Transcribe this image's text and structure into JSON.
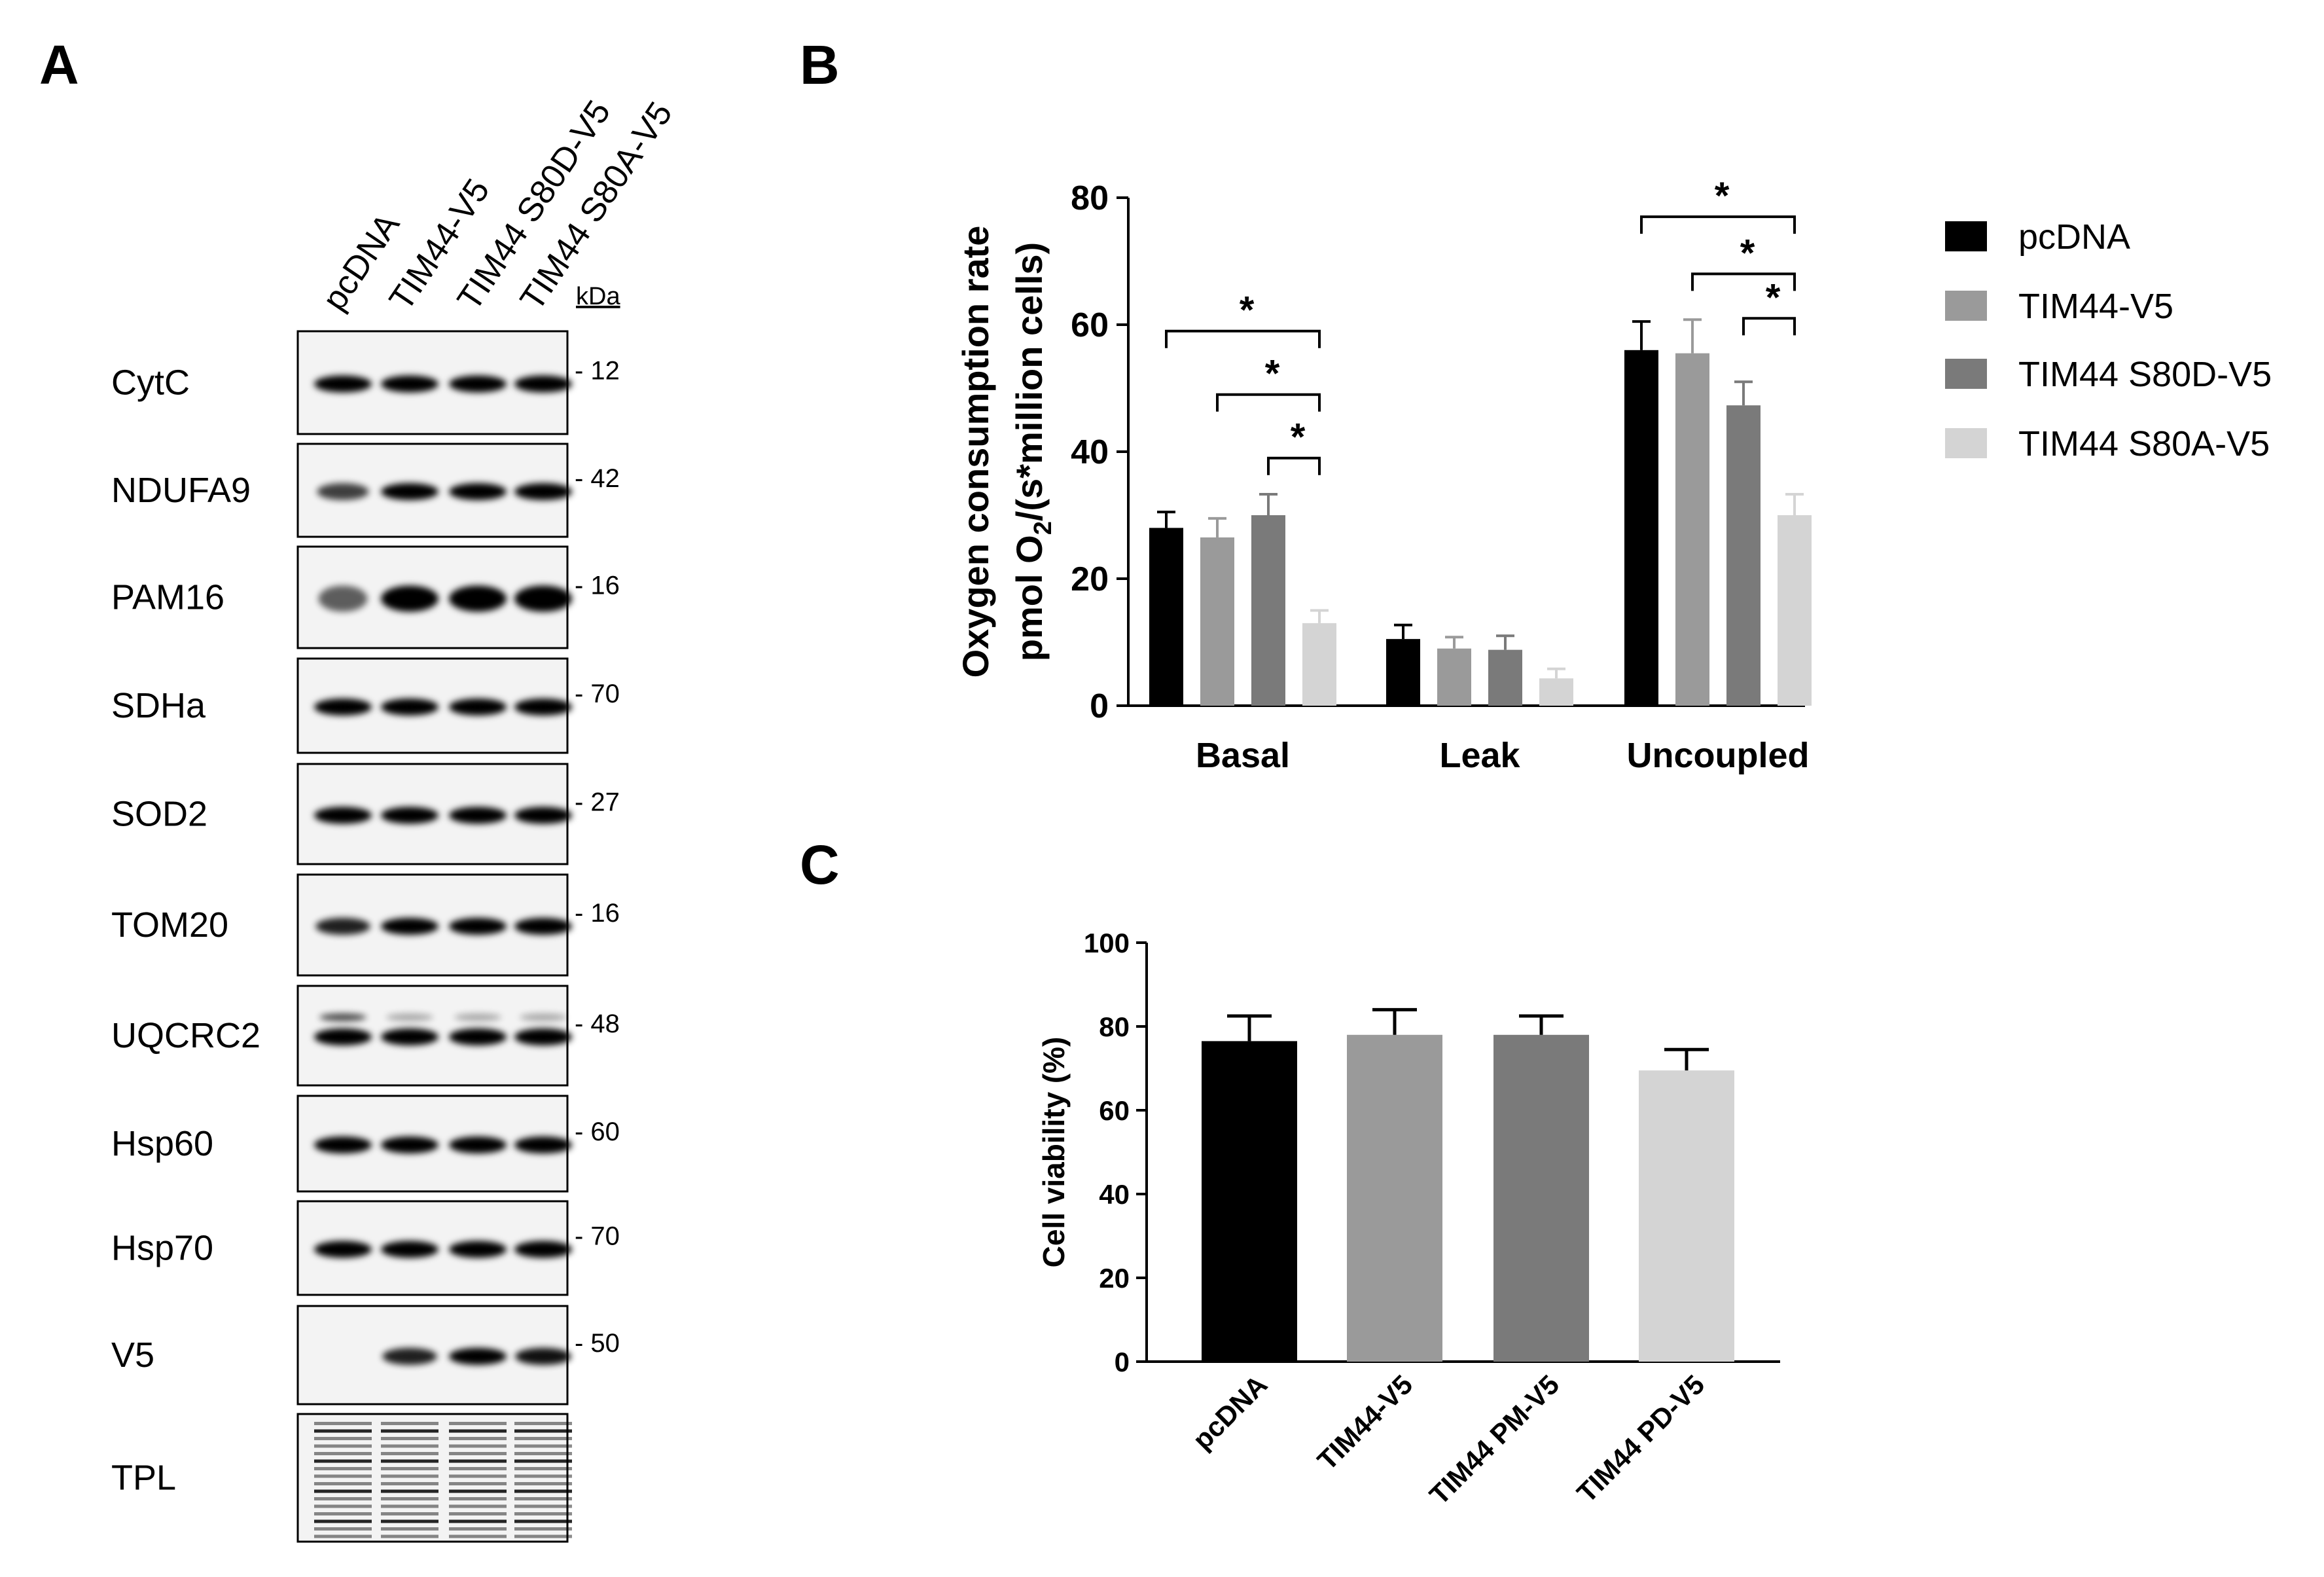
{
  "panels": {
    "a": "A",
    "b": "B",
    "c": "C"
  },
  "panel_a": {
    "lanes": [
      "pcDNA",
      "TIM44-V5",
      "TIM44 S80D-V5",
      "TIM44 S80A-V5"
    ],
    "kda_header": "kDa",
    "blots": [
      {
        "protein": "CytC",
        "kda": "- 12",
        "intensities": [
          1,
          1,
          1,
          1
        ]
      },
      {
        "protein": "NDUFA9",
        "kda": "- 42",
        "intensities": [
          0.6,
          1,
          1,
          1
        ]
      },
      {
        "protein": "PAM16",
        "kda": "- 16",
        "intensities": [
          0.4,
          1,
          1,
          1
        ]
      },
      {
        "protein": "SDHa",
        "kda": "- 70",
        "intensities": [
          1,
          1,
          1,
          1
        ]
      },
      {
        "protein": "SOD2",
        "kda": "- 27",
        "intensities": [
          1,
          1,
          1,
          1
        ]
      },
      {
        "protein": "TOM20",
        "kda": "- 16",
        "intensities": [
          0.8,
          1,
          1,
          1
        ]
      },
      {
        "protein": "UQCRC2",
        "kda": "- 48",
        "intensities": [
          1,
          1,
          1,
          1
        ]
      },
      {
        "protein": "Hsp60",
        "kda": "- 60",
        "intensities": [
          1,
          1,
          1,
          1
        ]
      },
      {
        "protein": "Hsp70",
        "kda": "- 70",
        "intensities": [
          1,
          1,
          1,
          1
        ]
      },
      {
        "protein": "V5",
        "kda": "- 50",
        "intensities": [
          0,
          0.8,
          1,
          0.9
        ]
      },
      {
        "protein": "TPL",
        "kda": "",
        "intensities": [
          1,
          1,
          1,
          1
        ]
      }
    ]
  },
  "chart_data": [
    {
      "type": "bar",
      "panel": "B",
      "ylabel_line1": "Oxygen consumption rate",
      "ylabel_line2_pre": "pmol O",
      "ylabel_line2_sub": "2",
      "ylabel_line2_post": "/(s*million cells)",
      "ylim": [
        0,
        80
      ],
      "yticks": [
        "0",
        "20",
        "40",
        "60",
        "80"
      ],
      "categories": [
        "Basal",
        "Leak",
        "Uncoupled"
      ],
      "series": [
        {
          "name": "pcDNA",
          "color": "#000000",
          "values": [
            28,
            10.5,
            56
          ],
          "errors": [
            2.5,
            2.2,
            4.5
          ]
        },
        {
          "name": "TIM44-V5",
          "color": "#9a9a9a",
          "values": [
            26.5,
            9,
            55.5
          ],
          "errors": [
            3,
            1.8,
            5.3
          ]
        },
        {
          "name": "TIM44 S80D-V5",
          "color": "#7a7a7a",
          "values": [
            30,
            8.8,
            47.3
          ],
          "errors": [
            3.3,
            2.2,
            3.7
          ]
        },
        {
          "name": "TIM44 S80A-V5",
          "color": "#d4d4d4",
          "values": [
            13,
            4.3,
            30
          ],
          "errors": [
            2,
            1.5,
            3.3
          ]
        }
      ],
      "significance": [
        {
          "label": "*",
          "group": 0,
          "from": 0,
          "to": 3,
          "y": 59
        },
        {
          "label": "*",
          "group": 0,
          "from": 1,
          "to": 3,
          "y": 49
        },
        {
          "label": "*",
          "group": 0,
          "from": 2,
          "to": 3,
          "y": 39
        },
        {
          "label": "*",
          "group": 2,
          "from": 0,
          "to": 3,
          "y": 77
        },
        {
          "label": "*",
          "group": 2,
          "from": 1,
          "to": 3,
          "y": 68
        },
        {
          "label": "*",
          "group": 2,
          "from": 2,
          "to": 3,
          "y": 61
        }
      ],
      "legend_position": "right"
    },
    {
      "type": "bar",
      "panel": "C",
      "ylabel": "Cell viability (%)",
      "ylim": [
        0,
        100
      ],
      "yticks": [
        "0",
        "20",
        "40",
        "60",
        "80",
        "100"
      ],
      "categories": [
        "pcDNA",
        "TIM44-V5",
        "TIM44 PM-V5",
        "TIM44 PD-V5"
      ],
      "values": [
        76.5,
        78,
        78,
        69.5
      ],
      "errors": [
        6,
        6,
        4.5,
        5
      ],
      "colors": [
        "#000000",
        "#9a9a9a",
        "#7a7a7a",
        "#d4d4d4"
      ]
    }
  ]
}
